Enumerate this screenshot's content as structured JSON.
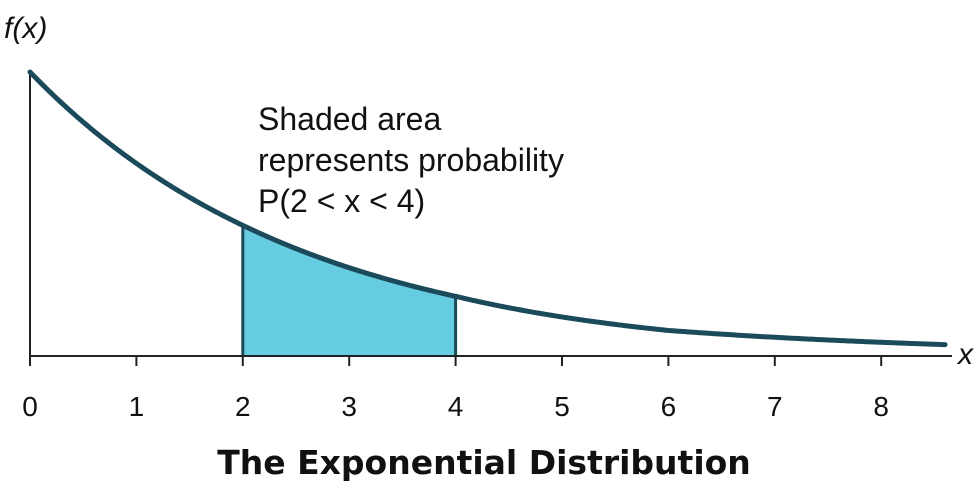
{
  "chart_data": {
    "type": "area",
    "title": "The Exponential Distribution",
    "xlabel": "x",
    "ylabel": "f(x)",
    "xlim": [
      0,
      8.6
    ],
    "x_ticks": [
      "0",
      "1",
      "2",
      "3",
      "4",
      "5",
      "6",
      "7",
      "8"
    ],
    "curve": {
      "function": "exponential decay",
      "points": [
        {
          "x": 0,
          "y": 1.0
        },
        {
          "x": 2,
          "y": 0.46
        },
        {
          "x": 4,
          "y": 0.21
        },
        {
          "x": 6,
          "y": 0.09
        },
        {
          "x": 8.6,
          "y": 0.04
        }
      ]
    },
    "shaded_region": {
      "x_from": 2,
      "x_to": 4
    },
    "annotation": {
      "line1": "Shaded area",
      "line2": "represents probability",
      "line3": "P(2 < x < 4)"
    },
    "colors": {
      "curve": "#1b4a5a",
      "shade": "#66cce2",
      "axis": "#222222"
    }
  }
}
